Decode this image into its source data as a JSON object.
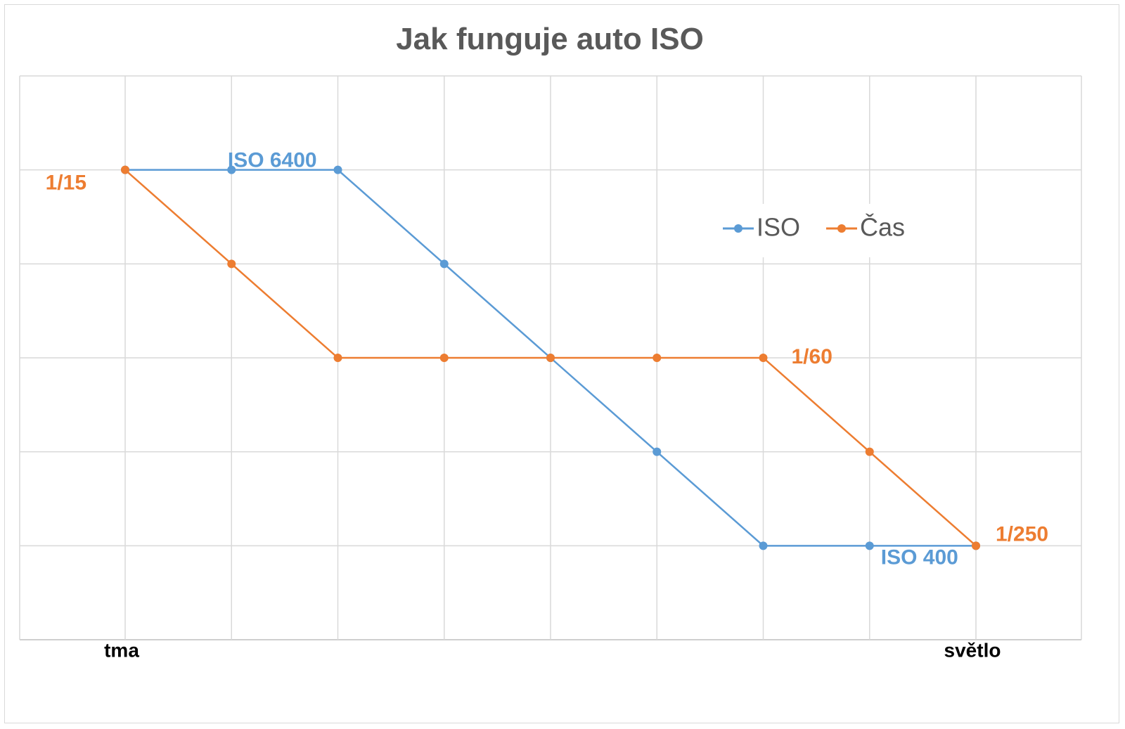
{
  "chart_data": {
    "type": "line",
    "title": "Jak funguje auto ISO",
    "xlabel": "",
    "ylabel": "",
    "x_tick_labels": [
      "tma",
      "",
      "",
      "",
      "",
      "",
      "",
      "",
      "světlo"
    ],
    "ylim": [
      0,
      6
    ],
    "grid": true,
    "legend_position": "top-right",
    "series": [
      {
        "name": "ISO",
        "color": "#5b9bd5",
        "values": [
          5,
          5,
          5,
          4,
          3,
          2,
          1,
          1,
          1
        ]
      },
      {
        "name": "Čas",
        "color": "#ed7d31",
        "values": [
          5,
          4,
          3,
          3,
          3,
          3,
          3,
          2,
          1
        ]
      }
    ],
    "annotations": [
      {
        "text": "ISO 6400",
        "series": "ISO",
        "point": 1
      },
      {
        "text": "ISO 400",
        "series": "ISO",
        "point": 7
      },
      {
        "text": "1/15",
        "series": "Čas",
        "point": 0
      },
      {
        "text": "1/60",
        "series": "Čas",
        "point": 6
      },
      {
        "text": "1/250",
        "series": "Čas",
        "point": 8
      }
    ]
  }
}
